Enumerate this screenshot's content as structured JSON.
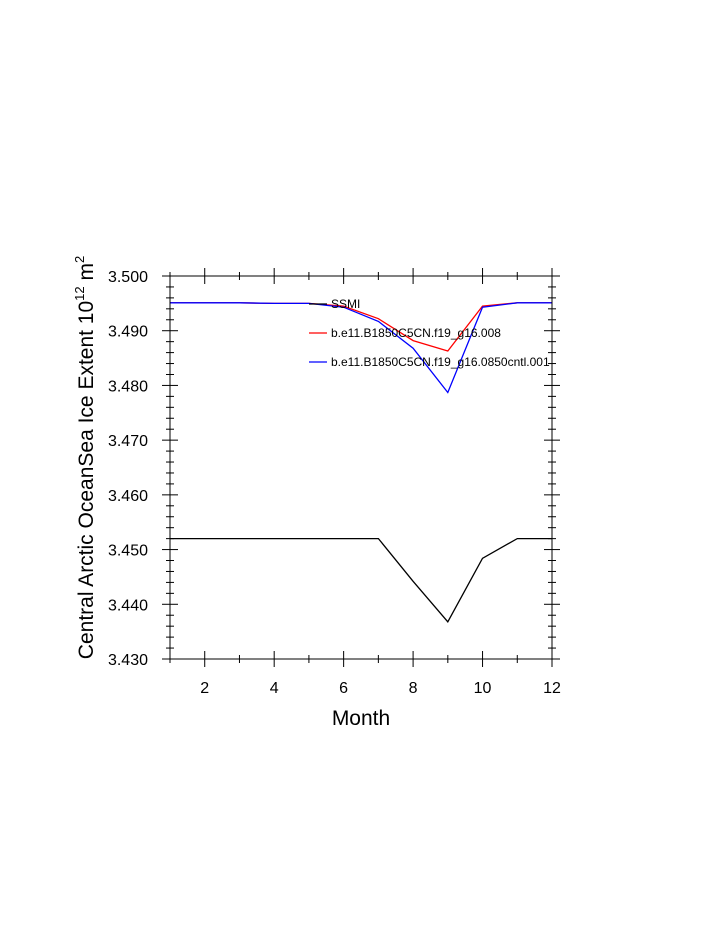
{
  "chart_data": {
    "type": "line",
    "xlabel": "Month",
    "ylabel": {
      "prefix": "Central Arctic OceanSea Ice Extent 10",
      "exp": "12",
      "unit": " m",
      "unit_exp": "2"
    },
    "xlim": [
      1,
      12
    ],
    "ylim": [
      3.43,
      3.5
    ],
    "xticks": [
      2,
      4,
      6,
      8,
      10,
      12
    ],
    "yticks": [
      3.43,
      3.44,
      3.45,
      3.46,
      3.47,
      3.48,
      3.49,
      3.5
    ],
    "ytick_labels": [
      "3.430",
      "3.440",
      "3.450",
      "3.460",
      "3.470",
      "3.480",
      "3.490",
      "3.500"
    ],
    "grid": false,
    "legend_position": "top-right",
    "x": [
      1,
      2,
      3,
      4,
      5,
      6,
      7,
      8,
      9,
      10,
      11,
      12
    ],
    "series": [
      {
        "name": "SSMI",
        "color": "#000000",
        "values": [
          3.452,
          3.452,
          3.452,
          3.452,
          3.452,
          3.452,
          3.452,
          3.4442,
          3.4368,
          3.4484,
          3.452,
          3.452
        ]
      },
      {
        "name": "b.e11.B1850C5CN.f19_g16.008",
        "color": "#ff0000",
        "values": [
          3.4951,
          3.4951,
          3.4951,
          3.495,
          3.495,
          3.4945,
          3.4922,
          3.4882,
          3.4863,
          3.4945,
          3.4951,
          3.4951
        ]
      },
      {
        "name": "b.e11.B1850C5CN.f19_g16.0850cntl.001",
        "color": "#0000ff",
        "values": [
          3.4951,
          3.4951,
          3.4951,
          3.495,
          3.495,
          3.4943,
          3.4917,
          3.4868,
          3.4787,
          3.4943,
          3.4951,
          3.4951
        ]
      }
    ]
  }
}
